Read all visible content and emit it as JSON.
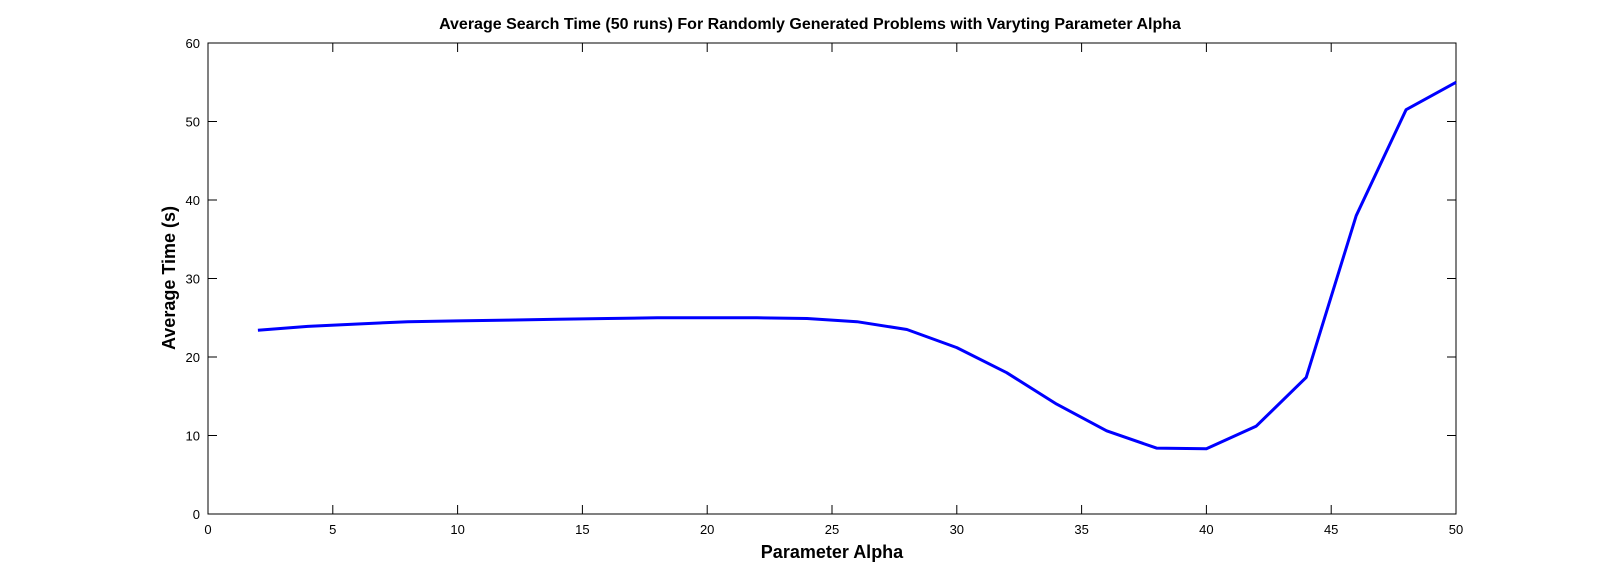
{
  "chart_data": {
    "type": "line",
    "title": "Average Search Time (50 runs) For Randomly Generated Problems with Varyting Parameter Alpha",
    "xlabel": "Parameter Alpha",
    "ylabel": "Average Time (s)",
    "xlim": [
      0,
      50
    ],
    "ylim": [
      0,
      60
    ],
    "xticks": [
      0,
      5,
      10,
      15,
      20,
      25,
      30,
      35,
      40,
      45,
      50
    ],
    "yticks": [
      0,
      10,
      20,
      30,
      40,
      50,
      60
    ],
    "grid": false,
    "series": [
      {
        "color": "#0000ff",
        "x": [
          2,
          4,
          6,
          8,
          10,
          12,
          14,
          16,
          18,
          20,
          22,
          24,
          26,
          28,
          30,
          32,
          34,
          36,
          38,
          40,
          42,
          44,
          46,
          48,
          50
        ],
        "y": [
          23.4,
          23.9,
          24.2,
          24.5,
          24.6,
          24.7,
          24.8,
          24.9,
          25.0,
          25.0,
          25.0,
          24.9,
          24.5,
          23.5,
          21.2,
          18.0,
          14.0,
          10.6,
          8.4,
          8.3,
          11.2,
          17.4,
          38.0,
          51.5,
          55.0
        ]
      }
    ]
  }
}
